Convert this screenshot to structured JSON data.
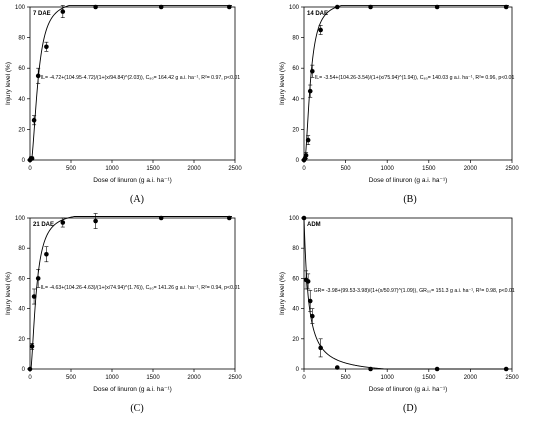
{
  "chart_data": [
    {
      "type": "scatter",
      "panel_label": "7 DAE",
      "caption": "(A)",
      "xlabel": "Dose of linuron (g a.i. ha⁻¹)",
      "ylabel": "Injury level (%)",
      "xlim": [
        0,
        2500
      ],
      "ylim": [
        0,
        100
      ],
      "xticks": [
        0,
        500,
        1000,
        1500,
        2000,
        2500
      ],
      "yticks": [
        0,
        20,
        40,
        60,
        80,
        100
      ],
      "grid": false,
      "equation": "IL= -4.72+(104.95-4.72)/(1+(x/94.84)^(2.03)), C₈₀= 164.42 g a.i. ha⁻¹, R²= 0.97, p<0.01",
      "fit": {
        "min": -4.72,
        "max": 104.95,
        "x50": 94.84,
        "slope": 2.03,
        "direction": "increasing"
      },
      "points": [
        {
          "x": 0,
          "y": 0,
          "err": 0
        },
        {
          "x": 12,
          "y": 1,
          "err": 1
        },
        {
          "x": 25,
          "y": 1,
          "err": 1
        },
        {
          "x": 50,
          "y": 26,
          "err": 3
        },
        {
          "x": 100,
          "y": 55,
          "err": 5
        },
        {
          "x": 200,
          "y": 74,
          "err": 3
        },
        {
          "x": 400,
          "y": 97,
          "err": 4
        },
        {
          "x": 800,
          "y": 100,
          "err": 0
        },
        {
          "x": 1600,
          "y": 100,
          "err": 0
        },
        {
          "x": 2430,
          "y": 100,
          "err": 0
        }
      ]
    },
    {
      "type": "scatter",
      "panel_label": "14 DAE",
      "caption": "(B)",
      "xlabel": "Dose of linuron (g a.i. ha⁻¹)",
      "ylabel": "Injury level (%)",
      "xlim": [
        0,
        2500
      ],
      "ylim": [
        0,
        100
      ],
      "xticks": [
        0,
        500,
        1000,
        1500,
        2000,
        2500
      ],
      "yticks": [
        0,
        20,
        40,
        60,
        80,
        100
      ],
      "grid": false,
      "equation": "IL= -3.54+(104.26-3.54)/(1+(x/75.94)^(1.94)), C₈₀= 140.03 g a.i. ha⁻¹, R²= 0.96, p<0.01",
      "fit": {
        "min": -3.54,
        "max": 104.26,
        "x50": 75.94,
        "slope": 1.94,
        "direction": "increasing"
      },
      "points": [
        {
          "x": 0,
          "y": 0,
          "err": 0
        },
        {
          "x": 12,
          "y": 1,
          "err": 1
        },
        {
          "x": 25,
          "y": 3,
          "err": 2
        },
        {
          "x": 50,
          "y": 13,
          "err": 3
        },
        {
          "x": 75,
          "y": 45,
          "err": 4
        },
        {
          "x": 100,
          "y": 58,
          "err": 4
        },
        {
          "x": 200,
          "y": 85,
          "err": 3
        },
        {
          "x": 400,
          "y": 100,
          "err": 0
        },
        {
          "x": 800,
          "y": 100,
          "err": 0
        },
        {
          "x": 1600,
          "y": 100,
          "err": 0
        },
        {
          "x": 2430,
          "y": 100,
          "err": 0
        }
      ]
    },
    {
      "type": "scatter",
      "panel_label": "21 DAE",
      "caption": "(C)",
      "xlabel": "Dose of linuron (g a.i. ha⁻¹)",
      "ylabel": "Injury level (%)",
      "xlim": [
        0,
        2500
      ],
      "ylim": [
        0,
        100
      ],
      "xticks": [
        0,
        500,
        1000,
        1500,
        2000,
        2500
      ],
      "yticks": [
        0,
        20,
        40,
        60,
        80,
        100
      ],
      "grid": false,
      "equation": "IL= -4.63+(104.26-4.63)/(1+(x/74.94)^(1.76)), C₈₀= 141.26 g a.i. ha⁻¹, R²= 0.94, p<0.01",
      "fit": {
        "min": -4.63,
        "max": 104.26,
        "x50": 74.94,
        "slope": 1.76,
        "direction": "increasing"
      },
      "points": [
        {
          "x": 0,
          "y": 0,
          "err": 0
        },
        {
          "x": 25,
          "y": 15,
          "err": 2
        },
        {
          "x": 50,
          "y": 48,
          "err": 5
        },
        {
          "x": 100,
          "y": 60,
          "err": 6
        },
        {
          "x": 200,
          "y": 76,
          "err": 5
        },
        {
          "x": 400,
          "y": 97,
          "err": 3
        },
        {
          "x": 800,
          "y": 98,
          "err": 5
        },
        {
          "x": 1600,
          "y": 100,
          "err": 0
        },
        {
          "x": 2430,
          "y": 100,
          "err": 0
        }
      ]
    },
    {
      "type": "scatter",
      "panel_label": "ADM",
      "caption": "(D)",
      "xlabel": "Dose of linuron (g a.i. ha⁻¹)",
      "ylabel": "Injury level (%)",
      "xlim": [
        0,
        2500
      ],
      "ylim": [
        0,
        100
      ],
      "xticks": [
        0,
        500,
        1000,
        1500,
        2000,
        2500
      ],
      "yticks": [
        0,
        20,
        40,
        60,
        80,
        100
      ],
      "grid": false,
      "equation": "GR= -3.98+(99.53-3.98)/(1+(x/50.97)^(1.09)), GR₅₀= 151.3 g a.i. ha⁻¹, R²= 0.98, p<0.01",
      "fit": {
        "min": -3.98,
        "max": 99.53,
        "x50": 50.97,
        "slope": 1.09,
        "direction": "decreasing"
      },
      "points": [
        {
          "x": 0,
          "y": 100,
          "err": 0
        },
        {
          "x": 25,
          "y": 59,
          "err": 6
        },
        {
          "x": 50,
          "y": 58,
          "err": 5
        },
        {
          "x": 75,
          "y": 45,
          "err": 7
        },
        {
          "x": 100,
          "y": 35,
          "err": 5
        },
        {
          "x": 200,
          "y": 14,
          "err": 6
        },
        {
          "x": 400,
          "y": 1,
          "err": 0
        },
        {
          "x": 800,
          "y": 0,
          "err": 0
        },
        {
          "x": 1600,
          "y": 0,
          "err": 0
        },
        {
          "x": 2430,
          "y": 0,
          "err": 0
        }
      ]
    }
  ]
}
